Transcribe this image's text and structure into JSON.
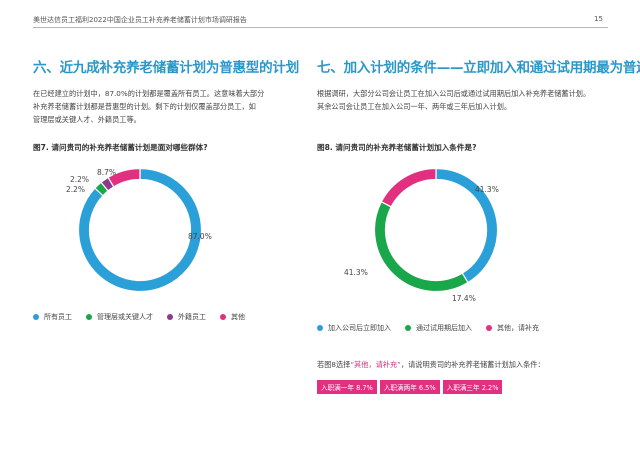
{
  "header": {
    "text": "美世达信员工福利2022中国企业员工补充养老储蓄计划市场调研报告",
    "page": "15"
  },
  "left": {
    "title": "六、近九成补充养老储蓄计划为普惠型的计划",
    "para_lines": [
      "在已经建立的计划中，87.0%的计划都是覆盖所有员工。这意味着大部分",
      "补充养老储蓄计划都是普惠型的计划。剩下的计划仅覆盖部分员工，如",
      "管理层或关键人才、外籍员工等。"
    ],
    "figure_title": "图7. 请问贵司的补充养老储蓄计划是面对哪些群体?"
  },
  "right": {
    "title": "七、加入计划的条件——立即加入和通过试用期最为普遍",
    "para_lines": [
      "根据调研，大部分公司会让员工在加入公司后或通过试用期后加入补充养老储蓄计划。",
      "其余公司会让员工在加入公司一年、两年或三年后加入计划。"
    ],
    "figure_title": "图8. 请问贵司的补充养老储蓄计划加入条件是?",
    "note_prefix": "若图8选择",
    "note_highlight": "“其他，请补充”",
    "note_suffix": "，请说明贵司的补充养老储蓄计划加入条件：",
    "tags": [
      "入职满一年  8.7%",
      "入职满两年  6.5%",
      "入职满三年  2.2%"
    ]
  },
  "chart_data": [
    {
      "type": "pie",
      "variant": "donut",
      "title": "图7. 请问贵司的补充养老储蓄计划是面对哪些群体?",
      "categories": [
        "所有员工",
        "管理层或关键人才",
        "外籍员工",
        "其他"
      ],
      "values": [
        87.0,
        2.2,
        2.2,
        8.7
      ],
      "labels": [
        "87.0%",
        "2.2%",
        "2.2%",
        "8.7%"
      ],
      "colors": [
        "#2a9fd8",
        "#1aa64a",
        "#8e3a8c",
        "#e22f7f"
      ],
      "legend": "bottom"
    },
    {
      "type": "pie",
      "variant": "donut",
      "title": "图8. 请问贵司的补充养老储蓄计划加入条件是?",
      "categories": [
        "加入公司后立即加入",
        "通过试用期后加入",
        "其他，请补充"
      ],
      "values": [
        41.3,
        41.3,
        17.4
      ],
      "labels": [
        "41.3%",
        "41.3%",
        "17.4%"
      ],
      "colors": [
        "#2a9fd8",
        "#1aa64a",
        "#e22f7f"
      ],
      "legend": "bottom"
    }
  ]
}
